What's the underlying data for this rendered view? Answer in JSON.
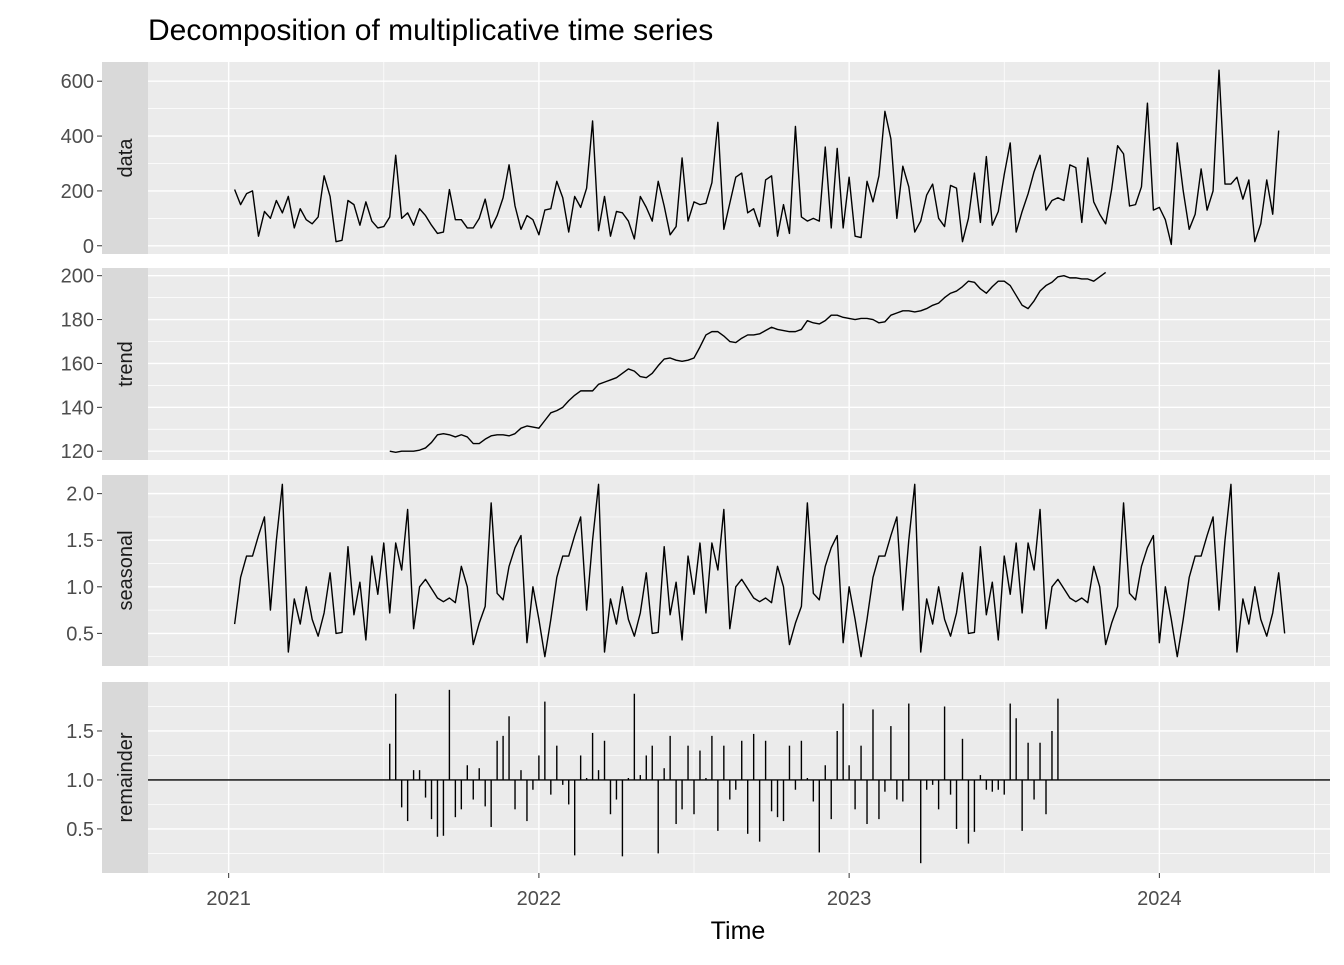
{
  "chart_data": {
    "type": "line",
    "title": "Decomposition of multiplicative time series",
    "xlabel": "Time",
    "x_ticks": [
      2021,
      2022,
      2023,
      2024
    ],
    "xlim": [
      2020.74,
      2024.55
    ],
    "start": 2021.0192,
    "frequency": 52,
    "panels": [
      {
        "name": "data",
        "strip_label": "data",
        "kind": "line",
        "ylim": [
          -30,
          670
        ],
        "y_ticks": [
          0,
          200,
          400,
          600
        ],
        "y_tick_labels": [
          "0",
          "200",
          "400",
          "600"
        ],
        "offset": 0,
        "values": [
          205,
          150,
          190,
          200,
          35,
          125,
          100,
          165,
          120,
          180,
          65,
          135,
          95,
          80,
          105,
          255,
          180,
          15,
          20,
          165,
          150,
          75,
          160,
          90,
          65,
          70,
          105,
          330,
          100,
          120,
          75,
          135,
          110,
          75,
          45,
          50,
          205,
          95,
          95,
          65,
          65,
          100,
          170,
          65,
          110,
          175,
          295,
          145,
          60,
          110,
          95,
          40,
          130,
          135,
          235,
          175,
          50,
          180,
          140,
          210,
          455,
          55,
          180,
          35,
          125,
          120,
          90,
          25,
          180,
          140,
          90,
          235,
          145,
          40,
          70,
          320,
          90,
          160,
          150,
          155,
          230,
          450,
          60,
          155,
          250,
          265,
          120,
          135,
          70,
          240,
          255,
          35,
          150,
          45,
          435,
          105,
          90,
          100,
          90,
          360,
          65,
          355,
          65,
          250,
          35,
          30,
          235,
          160,
          255,
          490,
          390,
          100,
          290,
          215,
          50,
          90,
          185,
          225,
          100,
          70,
          220,
          210,
          15,
          100,
          265,
          85,
          325,
          75,
          125,
          260,
          375,
          50,
          125,
          190,
          270,
          330,
          130,
          165,
          175,
          165,
          295,
          285,
          85,
          320,
          160,
          115,
          80,
          205,
          365,
          335,
          145,
          150,
          215,
          520,
          130,
          140,
          95,
          5,
          375,
          200,
          60,
          115,
          280,
          130,
          200,
          640,
          225,
          225,
          250,
          170,
          240,
          15,
          80,
          240,
          115,
          420
        ]
      },
      {
        "name": "trend",
        "strip_label": "trend",
        "kind": "line",
        "ylim": [
          116,
          203.5
        ],
        "y_ticks": [
          120,
          140,
          160,
          180,
          200
        ],
        "y_tick_labels": [
          "120",
          "140",
          "160",
          "180",
          "200"
        ],
        "offset": 26,
        "values": [
          120,
          119.5,
          120,
          120,
          120,
          120.5,
          121.5,
          124,
          127.5,
          128,
          127.5,
          126.5,
          127.5,
          126.5,
          123.5,
          123.5,
          125.5,
          127,
          127.5,
          127.5,
          127,
          128,
          130.5,
          131.5,
          131,
          130.5,
          134,
          137.5,
          138.5,
          140,
          143,
          145.5,
          147.5,
          147.5,
          147.5,
          150.5,
          151.5,
          152.5,
          153.5,
          155.5,
          157.5,
          156.5,
          154,
          153.5,
          155.5,
          159,
          162,
          162.5,
          161.5,
          161,
          161.5,
          162.5,
          167.5,
          173,
          174.5,
          174.5,
          172.5,
          170,
          169.5,
          171.5,
          173,
          173,
          173.5,
          175,
          176.5,
          175.5,
          175,
          174.5,
          174.5,
          175.5,
          179.5,
          178.5,
          178,
          179.5,
          182,
          182,
          181,
          180.5,
          180,
          180.5,
          180.5,
          180,
          178.5,
          179,
          182,
          183,
          184,
          184,
          183.5,
          184,
          185,
          186.5,
          187.5,
          190,
          192,
          193,
          195,
          197.5,
          197,
          194,
          192,
          195,
          197.5,
          197.5,
          195.5,
          191,
          186.5,
          185,
          188.5,
          193,
          195.5,
          197,
          199.5,
          200,
          199,
          199,
          198.5,
          198.5,
          197.5,
          199.5,
          201.5
        ]
      },
      {
        "name": "seasonal",
        "strip_label": "seasonal",
        "kind": "line",
        "ylim": [
          0.15,
          2.2
        ],
        "y_ticks": [
          0.5,
          1.0,
          1.5,
          2.0
        ],
        "y_tick_labels": [
          "0.5",
          "1.0",
          "1.5",
          "2.0"
        ],
        "offset": 0,
        "values": [
          0.6,
          1.1,
          1.33,
          1.33,
          1.55,
          1.75,
          0.75,
          1.5,
          2.1,
          0.3,
          0.87,
          0.6,
          1.0,
          0.65,
          0.47,
          0.72,
          1.15,
          0.5,
          0.51,
          1.43,
          0.7,
          1.05,
          0.43,
          1.33,
          0.92,
          1.47,
          0.72,
          1.47,
          1.18,
          1.83,
          0.55,
          1.0,
          1.08,
          0.98,
          0.88,
          0.84,
          0.88,
          0.83,
          1.22,
          1.0,
          0.38,
          0.61,
          0.79,
          1.9,
          0.93,
          0.86,
          1.22,
          1.42,
          1.55,
          0.4,
          1.0,
          0.65,
          0.25,
          0.65,
          1.1,
          1.33,
          1.33,
          1.55,
          1.75,
          0.75,
          1.5,
          2.1,
          0.3,
          0.87,
          0.6,
          1.0,
          0.65,
          0.47,
          0.72,
          1.15,
          0.5,
          0.51,
          1.43,
          0.7,
          1.05,
          0.43,
          1.33,
          0.92,
          1.47,
          0.72,
          1.47,
          1.18,
          1.83,
          0.55,
          1.0,
          1.08,
          0.98,
          0.88,
          0.84,
          0.88,
          0.83,
          1.22,
          1.0,
          0.38,
          0.61,
          0.79,
          1.9,
          0.93,
          0.86,
          1.22,
          1.42,
          1.55,
          0.4,
          1.0,
          0.65,
          0.25,
          0.65,
          1.1,
          1.33,
          1.33,
          1.55,
          1.75,
          0.75,
          1.5,
          2.1,
          0.3,
          0.87,
          0.6,
          1.0,
          0.65,
          0.47,
          0.72,
          1.15,
          0.5,
          0.51,
          1.43,
          0.7,
          1.05,
          0.43,
          1.33,
          0.92,
          1.47,
          0.72,
          1.47,
          1.18,
          1.83,
          0.55,
          1.0,
          1.08,
          0.98,
          0.88,
          0.84,
          0.88,
          0.83,
          1.22,
          1.0,
          0.38,
          0.61,
          0.79,
          1.9,
          0.93,
          0.86,
          1.22,
          1.42,
          1.55,
          0.4,
          1.0,
          0.65,
          0.25,
          0.65,
          1.1,
          1.33,
          1.33,
          1.55,
          1.75,
          0.75,
          1.5,
          2.1,
          0.3,
          0.87,
          0.6,
          1.0,
          0.65,
          0.47,
          0.72,
          1.15,
          0.5
        ]
      },
      {
        "name": "remainder",
        "strip_label": "remainder",
        "kind": "bar",
        "baseline": 1.0,
        "ylim": [
          0.05,
          2.0
        ],
        "y_ticks": [
          0.5,
          1.0,
          1.5
        ],
        "y_tick_labels": [
          "0.5",
          "1.0",
          "1.5"
        ],
        "offset": 26,
        "values": [
          1.37,
          1.88,
          0.72,
          0.58,
          1.1,
          1.1,
          0.82,
          0.6,
          0.42,
          0.43,
          1.92,
          0.62,
          0.7,
          1.15,
          0.8,
          1.12,
          0.73,
          0.52,
          1.4,
          1.45,
          1.65,
          0.7,
          1.1,
          0.58,
          0.9,
          1.25,
          1.8,
          0.85,
          1.35,
          0.95,
          0.75,
          0.23,
          1.25,
          1.02,
          1.48,
          1.1,
          1.4,
          0.65,
          0.8,
          0.22,
          1.02,
          1.88,
          1.05,
          1.25,
          1.35,
          0.25,
          1.12,
          1.45,
          0.55,
          0.7,
          1.35,
          0.65,
          1.3,
          1.02,
          1.45,
          0.48,
          1.35,
          0.8,
          0.9,
          1.4,
          0.45,
          1.47,
          0.37,
          1.4,
          0.68,
          0.62,
          0.58,
          1.35,
          0.9,
          1.4,
          1.02,
          0.78,
          0.26,
          1.15,
          0.6,
          1.5,
          1.78,
          1.15,
          0.7,
          1.35,
          0.55,
          1.72,
          0.6,
          0.88,
          1.55,
          0.8,
          0.78,
          1.78,
          1.0,
          0.15,
          0.9,
          0.95,
          0.7,
          1.75,
          0.85,
          0.5,
          1.42,
          0.35,
          0.47,
          1.05,
          0.9,
          0.88,
          0.9,
          0.85,
          1.78,
          1.63,
          0.48,
          1.38,
          0.8,
          1.38,
          0.65,
          1.5,
          1.83
        ]
      }
    ],
    "grid": true,
    "panel_background": "#ebebeb",
    "strip_background": "#d9d9d9",
    "grid_color": "#ffffff",
    "line_color": "#000000"
  }
}
